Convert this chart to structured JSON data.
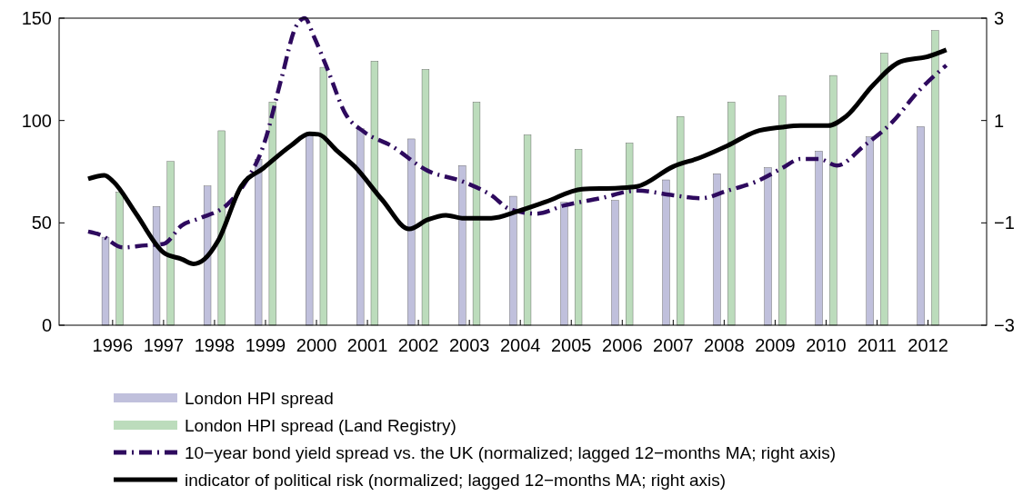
{
  "chart_data": {
    "type": "bar",
    "xlim": [
      1994.95,
      2013.15
    ],
    "xticks": [
      1996,
      1997,
      1998,
      1999,
      2000,
      2001,
      2002,
      2003,
      2004,
      2005,
      2006,
      2007,
      2008,
      2009,
      2010,
      2011,
      2012
    ],
    "ylim": [
      0,
      150
    ],
    "yticks": [
      0,
      50,
      100,
      150
    ],
    "y2lim": [
      -3,
      3
    ],
    "y2ticks": [
      {
        "value": -3,
        "label": "−3"
      },
      {
        "value": -1,
        "label": "−1"
      },
      {
        "value": 1,
        "label": "1"
      },
      {
        "value": 3,
        "label": "3"
      }
    ],
    "grid": false,
    "legend": "bottom",
    "series": [
      {
        "name": "London HPI spread",
        "color": "#c0c0dc",
        "x": [
          1996,
          1997,
          1998,
          1999,
          2000,
          2001,
          2002,
          2003,
          2004,
          2005,
          2006,
          2007,
          2008,
          2009,
          2010,
          2011,
          2012
        ],
        "values": [
          43,
          58,
          68,
          81,
          93,
          96,
          91,
          78,
          63,
          60,
          61,
          71,
          74,
          77,
          85,
          92,
          97
        ]
      },
      {
        "name": "London HPI spread (Land Registry)",
        "color": "#bcdcbc",
        "x": [
          1996,
          1997,
          1998,
          1999,
          2000,
          2001,
          2002,
          2003,
          2004,
          2005,
          2006,
          2007,
          2008,
          2009,
          2010,
          2011,
          2012
        ],
        "values": [
          65,
          80,
          95,
          109,
          126,
          129,
          125,
          109,
          93,
          86,
          89,
          102,
          109,
          112,
          122,
          133,
          144
        ]
      },
      {
        "name": "10−year bond yield spread vs. the UK (normalized; lagged 12−months MA; right axis)",
        "type": "line",
        "axis": "y2",
        "line_style": "dashed",
        "color": "#2e0a5e",
        "x": [
          1995.52,
          1995.75,
          1996.2,
          1996.64,
          1997.0,
          1997.36,
          1997.71,
          1998.25,
          1998.61,
          1998.96,
          1999.32,
          1999.59,
          1999.77,
          1999.95,
          2000.21,
          2000.57,
          2000.93,
          2001.46,
          2002.18,
          2002.89,
          2003.43,
          2003.79,
          2004.32,
          2004.86,
          2005.57,
          2006.29,
          2007.0,
          2007.54,
          2008.07,
          2008.61,
          2009.14,
          2009.5,
          2009.86,
          2010.21,
          2010.75,
          2011.29,
          2011.82,
          2012.36
        ],
        "values": [
          -1.17,
          -1.23,
          -1.48,
          -1.44,
          -1.41,
          -1.05,
          -0.91,
          -0.64,
          -0.2,
          0.51,
          1.85,
          2.82,
          3.0,
          2.64,
          2.02,
          1.13,
          0.78,
          0.51,
          0.02,
          -0.2,
          -0.46,
          -0.73,
          -0.82,
          -0.66,
          -0.52,
          -0.37,
          -0.46,
          -0.52,
          -0.37,
          -0.2,
          0.07,
          0.25,
          0.25,
          0.12,
          0.51,
          0.96,
          1.58,
          2.08
        ]
      },
      {
        "name": "indicator of political risk (normalized; lagged 12−months MA; right axis)",
        "type": "line",
        "axis": "y2",
        "line_style": "solid",
        "color": "#000000",
        "x": [
          1995.52,
          1995.84,
          1996.02,
          1996.46,
          1997.0,
          1997.36,
          1997.59,
          1997.8,
          1998.07,
          1998.52,
          1998.96,
          1999.5,
          1999.86,
          2000.04,
          2000.39,
          2000.75,
          2001.29,
          2001.82,
          2002.18,
          2002.54,
          2002.89,
          2003.43,
          2003.96,
          2004.5,
          2005.21,
          2005.93,
          2006.29,
          2007.0,
          2007.54,
          2008.07,
          2008.61,
          2009.14,
          2009.5,
          2010.04,
          2010.39,
          2010.93,
          2011.46,
          2012.0,
          2012.36
        ],
        "values": [
          -0.14,
          -0.07,
          -0.2,
          -0.82,
          -1.58,
          -1.71,
          -1.8,
          -1.71,
          -1.35,
          -0.29,
          0.07,
          0.51,
          0.74,
          0.73,
          0.42,
          0.1,
          -0.55,
          -1.12,
          -0.94,
          -0.85,
          -0.91,
          -0.91,
          -0.77,
          -0.59,
          -0.34,
          -0.32,
          -0.29,
          0.1,
          0.28,
          0.51,
          0.78,
          0.87,
          0.9,
          0.9,
          1.08,
          1.7,
          2.15,
          2.25,
          2.38
        ]
      }
    ]
  }
}
